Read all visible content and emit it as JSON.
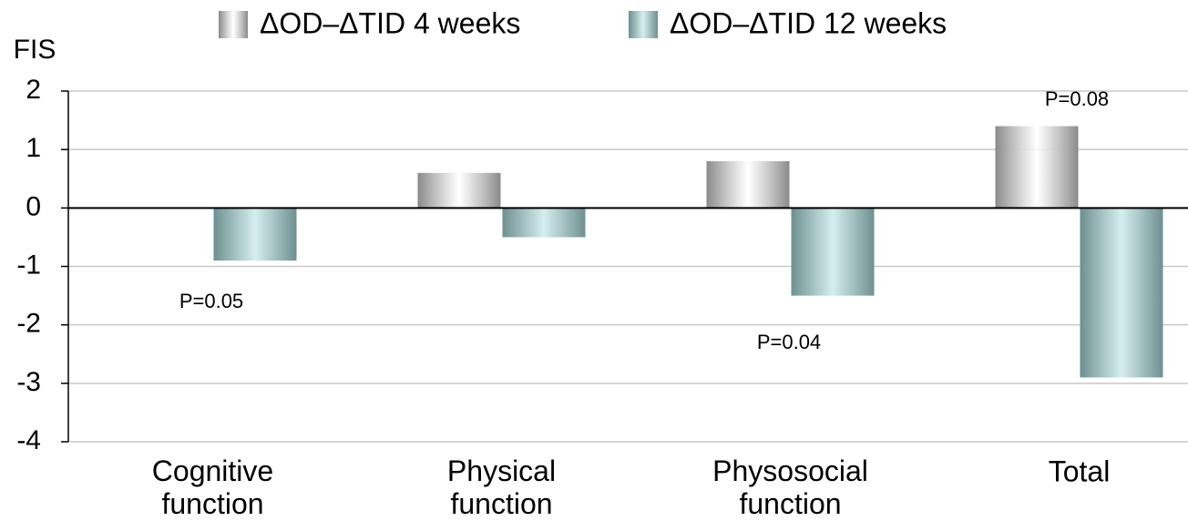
{
  "chart_data": {
    "type": "bar",
    "y_label": "FIS",
    "categories": [
      "Cognitive function",
      "Physical function",
      "Physosocial function",
      "Total"
    ],
    "series": [
      {
        "name": "ΔOD–ΔTID 4 weeks",
        "color": "#8a8a8a",
        "values": [
          0,
          0.6,
          0.8,
          1.4
        ]
      },
      {
        "name": "ΔOD–ΔTID 12 weeks",
        "color": "#6e9090",
        "values": [
          -0.9,
          -0.5,
          -1.5,
          -2.9
        ]
      }
    ],
    "annotations": [
      "P=0.05",
      "P=0.04",
      "P=0.08"
    ],
    "ylim": [
      -4,
      2
    ],
    "yticks": [
      -4,
      -3,
      -2,
      -1,
      0,
      1,
      2
    ],
    "grid": true,
    "legend": "top"
  }
}
